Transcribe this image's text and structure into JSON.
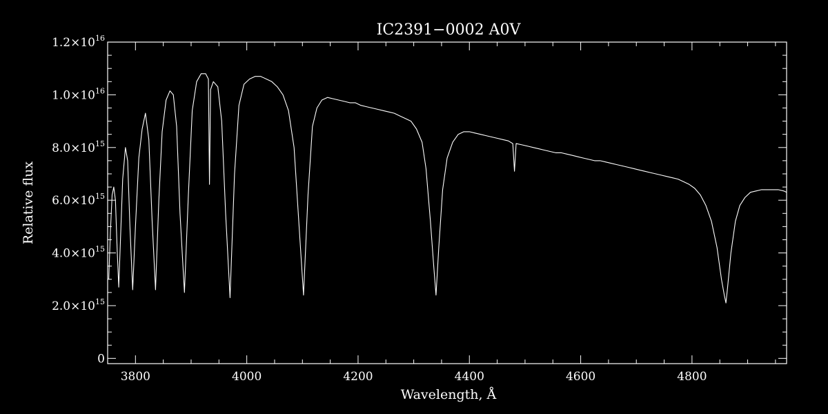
{
  "chart_data": {
    "type": "line",
    "title": "IC2391−0002   A0V",
    "xlabel": "Wavelength, Å",
    "ylabel": "Relative flux",
    "xlim": [
      3750,
      4970
    ],
    "ylim": [
      -200000000000000.0,
      1.2e+16
    ],
    "x_ticks": [
      3800,
      4000,
      4200,
      4400,
      4600,
      4800
    ],
    "x_tick_labels": [
      "3800",
      "4000",
      "4200",
      "4400",
      "4600",
      "4800"
    ],
    "x_minor_step": 50,
    "y_ticks": [
      0,
      2000000000000000.0,
      4000000000000000.0,
      6000000000000000.0,
      8000000000000000.0,
      1e+16,
      1.2e+16
    ],
    "y_tick_labels": [
      {
        "mantissa": "0",
        "exp": ""
      },
      {
        "mantissa": "2.0×10",
        "exp": "15"
      },
      {
        "mantissa": "4.0×10",
        "exp": "15"
      },
      {
        "mantissa": "6.0×10",
        "exp": "15"
      },
      {
        "mantissa": "8.0×10",
        "exp": "15"
      },
      {
        "mantissa": "1.0×10",
        "exp": "16"
      },
      {
        "mantissa": "1.2×10",
        "exp": "16"
      }
    ],
    "y_minor_step": 500000000000000.0,
    "grid": false,
    "legend": "none",
    "colors": {
      "background": "#000000",
      "foreground": "#ffffff"
    },
    "series": [
      {
        "values": [
          [
            3752,
            3000000000000000.0
          ],
          [
            3755,
            4800000000000000.0
          ],
          [
            3758,
            6200000000000000.0
          ],
          [
            3761,
            6500000000000000.0
          ],
          [
            3764,
            6000000000000000.0
          ],
          [
            3767,
            4200000000000000.0
          ],
          [
            3770,
            2700000000000000.0
          ],
          [
            3773,
            4500000000000000.0
          ],
          [
            3777,
            6800000000000000.0
          ],
          [
            3782,
            8000000000000000.0
          ],
          [
            3786,
            7500000000000000.0
          ],
          [
            3790,
            5000000000000000.0
          ],
          [
            3795,
            2600000000000000.0
          ],
          [
            3800,
            5000000000000000.0
          ],
          [
            3806,
            7600000000000000.0
          ],
          [
            3812,
            8700000000000000.0
          ],
          [
            3818,
            9300000000000000.0
          ],
          [
            3824,
            8300000000000000.0
          ],
          [
            3830,
            5200000000000000.0
          ],
          [
            3836,
            2600000000000000.0
          ],
          [
            3842,
            6000000000000000.0
          ],
          [
            3848,
            8600000000000000.0
          ],
          [
            3855,
            9800000000000000.0
          ],
          [
            3862,
            1.015e+16
          ],
          [
            3868,
            1e+16
          ],
          [
            3874,
            8800000000000000.0
          ],
          [
            3880,
            5500000000000000.0
          ],
          [
            3888,
            2500000000000000.0
          ],
          [
            3895,
            6200000000000000.0
          ],
          [
            3902,
            9400000000000000.0
          ],
          [
            3910,
            1.05e+16
          ],
          [
            3918,
            1.08e+16
          ],
          [
            3926,
            1.08e+16
          ],
          [
            3931,
            1.06e+16
          ],
          [
            3933,
            6600000000000000.0
          ],
          [
            3935,
            1.02e+16
          ],
          [
            3940,
            1.05e+16
          ],
          [
            3948,
            1.03e+16
          ],
          [
            3955,
            9000000000000000.0
          ],
          [
            3962,
            5500000000000000.0
          ],
          [
            3970,
            2300000000000000.0
          ],
          [
            3978,
            7000000000000000.0
          ],
          [
            3986,
            9600000000000000.0
          ],
          [
            3995,
            1.04e+16
          ],
          [
            4005,
            1.06e+16
          ],
          [
            4015,
            1.07e+16
          ],
          [
            4025,
            1.07e+16
          ],
          [
            4035,
            1.06e+16
          ],
          [
            4045,
            1.05e+16
          ],
          [
            4055,
            1.03e+16
          ],
          [
            4065,
            1e+16
          ],
          [
            4075,
            9400000000000000.0
          ],
          [
            4085,
            8000000000000000.0
          ],
          [
            4094,
            5000000000000000.0
          ],
          [
            4102,
            2400000000000000.0
          ],
          [
            4110,
            6200000000000000.0
          ],
          [
            4118,
            8800000000000000.0
          ],
          [
            4126,
            9500000000000000.0
          ],
          [
            4135,
            9800000000000000.0
          ],
          [
            4145,
            9900000000000000.0
          ],
          [
            4155,
            9850000000000000.0
          ],
          [
            4165,
            9800000000000000.0
          ],
          [
            4175,
            9750000000000000.0
          ],
          [
            4185,
            9700000000000000.0
          ],
          [
            4195,
            9700000000000000.0
          ],
          [
            4205,
            9600000000000000.0
          ],
          [
            4215,
            9550000000000000.0
          ],
          [
            4225,
            9500000000000000.0
          ],
          [
            4235,
            9450000000000000.0
          ],
          [
            4245,
            9400000000000000.0
          ],
          [
            4255,
            9350000000000000.0
          ],
          [
            4265,
            9300000000000000.0
          ],
          [
            4275,
            9200000000000000.0
          ],
          [
            4285,
            9100000000000000.0
          ],
          [
            4295,
            9000000000000000.0
          ],
          [
            4305,
            8700000000000000.0
          ],
          [
            4315,
            8200000000000000.0
          ],
          [
            4322,
            7200000000000000.0
          ],
          [
            4330,
            5200000000000000.0
          ],
          [
            4336,
            3500000000000000.0
          ],
          [
            4340,
            2400000000000000.0
          ],
          [
            4345,
            4200000000000000.0
          ],
          [
            4352,
            6400000000000000.0
          ],
          [
            4360,
            7600000000000000.0
          ],
          [
            4370,
            8200000000000000.0
          ],
          [
            4380,
            8500000000000000.0
          ],
          [
            4390,
            8600000000000000.0
          ],
          [
            4400,
            8600000000000000.0
          ],
          [
            4410,
            8550000000000000.0
          ],
          [
            4420,
            8500000000000000.0
          ],
          [
            4430,
            8450000000000000.0
          ],
          [
            4440,
            8400000000000000.0
          ],
          [
            4450,
            8350000000000000.0
          ],
          [
            4460,
            8300000000000000.0
          ],
          [
            4470,
            8250000000000000.0
          ],
          [
            4478,
            8150000000000000.0
          ],
          [
            4481,
            7100000000000000.0
          ],
          [
            4484,
            8150000000000000.0
          ],
          [
            4495,
            8100000000000000.0
          ],
          [
            4505,
            8050000000000000.0
          ],
          [
            4515,
            8000000000000000.0
          ],
          [
            4525,
            7950000000000000.0
          ],
          [
            4535,
            7900000000000000.0
          ],
          [
            4545,
            7850000000000000.0
          ],
          [
            4555,
            7800000000000000.0
          ],
          [
            4565,
            7800000000000000.0
          ],
          [
            4575,
            7750000000000000.0
          ],
          [
            4585,
            7700000000000000.0
          ],
          [
            4595,
            7650000000000000.0
          ],
          [
            4605,
            7600000000000000.0
          ],
          [
            4615,
            7550000000000000.0
          ],
          [
            4625,
            7500000000000000.0
          ],
          [
            4635,
            7500000000000000.0
          ],
          [
            4645,
            7450000000000000.0
          ],
          [
            4655,
            7400000000000000.0
          ],
          [
            4665,
            7350000000000000.0
          ],
          [
            4675,
            7300000000000000.0
          ],
          [
            4685,
            7250000000000000.0
          ],
          [
            4695,
            7200000000000000.0
          ],
          [
            4705,
            7150000000000000.0
          ],
          [
            4715,
            7100000000000000.0
          ],
          [
            4725,
            7050000000000000.0
          ],
          [
            4735,
            7000000000000000.0
          ],
          [
            4745,
            6950000000000000.0
          ],
          [
            4755,
            6900000000000000.0
          ],
          [
            4765,
            6850000000000000.0
          ],
          [
            4775,
            6800000000000000.0
          ],
          [
            4785,
            6700000000000000.0
          ],
          [
            4795,
            6600000000000000.0
          ],
          [
            4805,
            6450000000000000.0
          ],
          [
            4815,
            6200000000000000.0
          ],
          [
            4825,
            5800000000000000.0
          ],
          [
            4835,
            5200000000000000.0
          ],
          [
            4845,
            4200000000000000.0
          ],
          [
            4853,
            3000000000000000.0
          ],
          [
            4858,
            2400000000000000.0
          ],
          [
            4861,
            2100000000000000.0
          ],
          [
            4864,
            2700000000000000.0
          ],
          [
            4870,
            4000000000000000.0
          ],
          [
            4878,
            5200000000000000.0
          ],
          [
            4886,
            5800000000000000.0
          ],
          [
            4895,
            6100000000000000.0
          ],
          [
            4905,
            6300000000000000.0
          ],
          [
            4915,
            6350000000000000.0
          ],
          [
            4925,
            6400000000000000.0
          ],
          [
            4935,
            6400000000000000.0
          ],
          [
            4945,
            6400000000000000.0
          ],
          [
            4955,
            6400000000000000.0
          ],
          [
            4965,
            6350000000000000.0
          ],
          [
            4970,
            6300000000000000.0
          ]
        ]
      }
    ]
  }
}
